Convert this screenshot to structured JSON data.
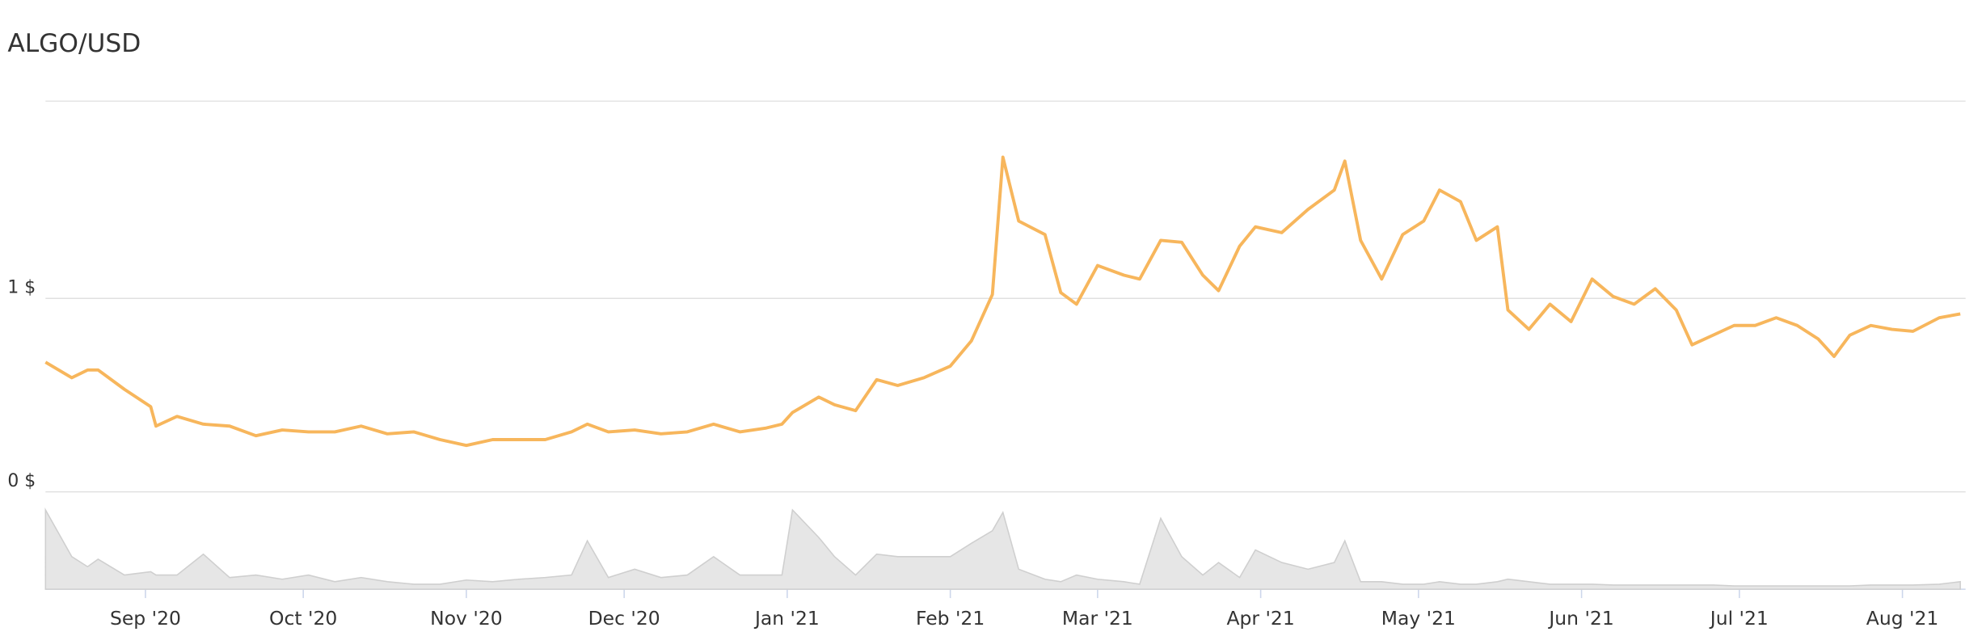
{
  "chart_data": {
    "type": "line",
    "title": "ALGO/USD",
    "x": [
      0,
      5,
      8,
      10,
      15,
      20,
      21,
      25,
      30,
      35,
      40,
      45,
      50,
      55,
      60,
      65,
      70,
      75,
      80,
      85,
      90,
      95,
      100,
      103,
      107,
      112,
      117,
      122,
      127,
      132,
      137,
      140,
      142,
      147,
      150,
      154,
      158,
      162,
      167,
      172,
      176,
      180,
      182,
      185,
      190,
      193,
      196,
      200,
      205,
      208,
      212,
      216,
      220,
      223,
      227,
      230,
      235,
      240,
      245,
      247,
      250,
      254,
      258,
      262,
      265,
      269,
      272,
      276,
      278,
      282,
      286,
      290,
      294,
      298,
      302,
      306,
      310,
      313,
      317,
      321,
      325,
      329,
      333,
      337,
      340,
      343,
      347,
      351,
      355,
      360,
      364
    ],
    "xlim": [
      0,
      365
    ],
    "xticks": [
      {
        "value": 19,
        "label": "Sep '20"
      },
      {
        "value": 49,
        "label": "Oct '20"
      },
      {
        "value": 80,
        "label": "Nov '20"
      },
      {
        "value": 110,
        "label": "Dec '20"
      },
      {
        "value": 141,
        "label": "Jan '21"
      },
      {
        "value": 172,
        "label": "Feb '21"
      },
      {
        "value": 200,
        "label": "Mar '21"
      },
      {
        "value": 231,
        "label": "Apr '21"
      },
      {
        "value": 261,
        "label": "May '21"
      },
      {
        "value": 292,
        "label": "Jun '21"
      },
      {
        "value": 322,
        "label": "Jul '21"
      },
      {
        "value": 353,
        "label": "Aug '21"
      }
    ],
    "ylim": [
      0,
      2
    ],
    "yticks": [
      {
        "value": 0,
        "label": "0 $"
      },
      {
        "value": 1,
        "label": "1 $"
      }
    ],
    "y2lim": [
      0,
      100
    ],
    "grid": true,
    "series": [
      {
        "color": "#f7b65c",
        "values": [
          0.67,
          0.59,
          0.63,
          0.63,
          0.53,
          0.44,
          0.34,
          0.39,
          0.35,
          0.34,
          0.29,
          0.32,
          0.31,
          0.31,
          0.34,
          0.3,
          0.31,
          0.27,
          0.24,
          0.27,
          0.27,
          0.27,
          0.31,
          0.35,
          0.31,
          0.32,
          0.3,
          0.31,
          0.35,
          0.31,
          0.33,
          0.35,
          0.41,
          0.49,
          0.45,
          0.42,
          0.58,
          0.55,
          0.59,
          0.65,
          0.78,
          1.02,
          1.73,
          1.4,
          1.33,
          1.03,
          0.97,
          1.17,
          1.12,
          1.1,
          1.3,
          1.29,
          1.12,
          1.04,
          1.27,
          1.37,
          1.34,
          1.46,
          1.56,
          1.71,
          1.3,
          1.1,
          1.33,
          1.4,
          1.56,
          1.5,
          1.3,
          1.37,
          0.94,
          0.84,
          0.97,
          0.88,
          1.1,
          1.01,
          0.97,
          1.05,
          0.94,
          0.76,
          0.81,
          0.86,
          0.86,
          0.9,
          0.86,
          0.79,
          0.7,
          0.81,
          0.86,
          0.84,
          0.83,
          0.9,
          0.92
        ]
      },
      {
        "color": "#e6e6e6",
        "axis": "y2",
        "values": [
          95,
          39,
          27,
          36,
          17,
          21,
          17,
          17,
          42,
          14,
          17,
          12,
          17,
          9,
          14,
          9,
          6,
          6,
          11,
          9,
          12,
          14,
          17,
          58,
          14,
          24,
          14,
          17,
          39,
          17,
          17,
          17,
          95,
          62,
          39,
          17,
          42,
          39,
          39,
          39,
          55,
          70,
          92,
          24,
          12,
          9,
          17,
          12,
          9,
          6,
          85,
          39,
          17,
          32,
          14,
          47,
          32,
          24,
          32,
          58,
          9,
          9,
          6,
          6,
          9,
          6,
          6,
          9,
          12,
          9,
          6,
          6,
          6,
          5,
          5,
          5,
          5,
          5,
          5,
          4,
          4,
          4,
          4,
          4,
          4,
          4,
          5,
          5,
          5,
          6,
          9
        ]
      }
    ]
  }
}
